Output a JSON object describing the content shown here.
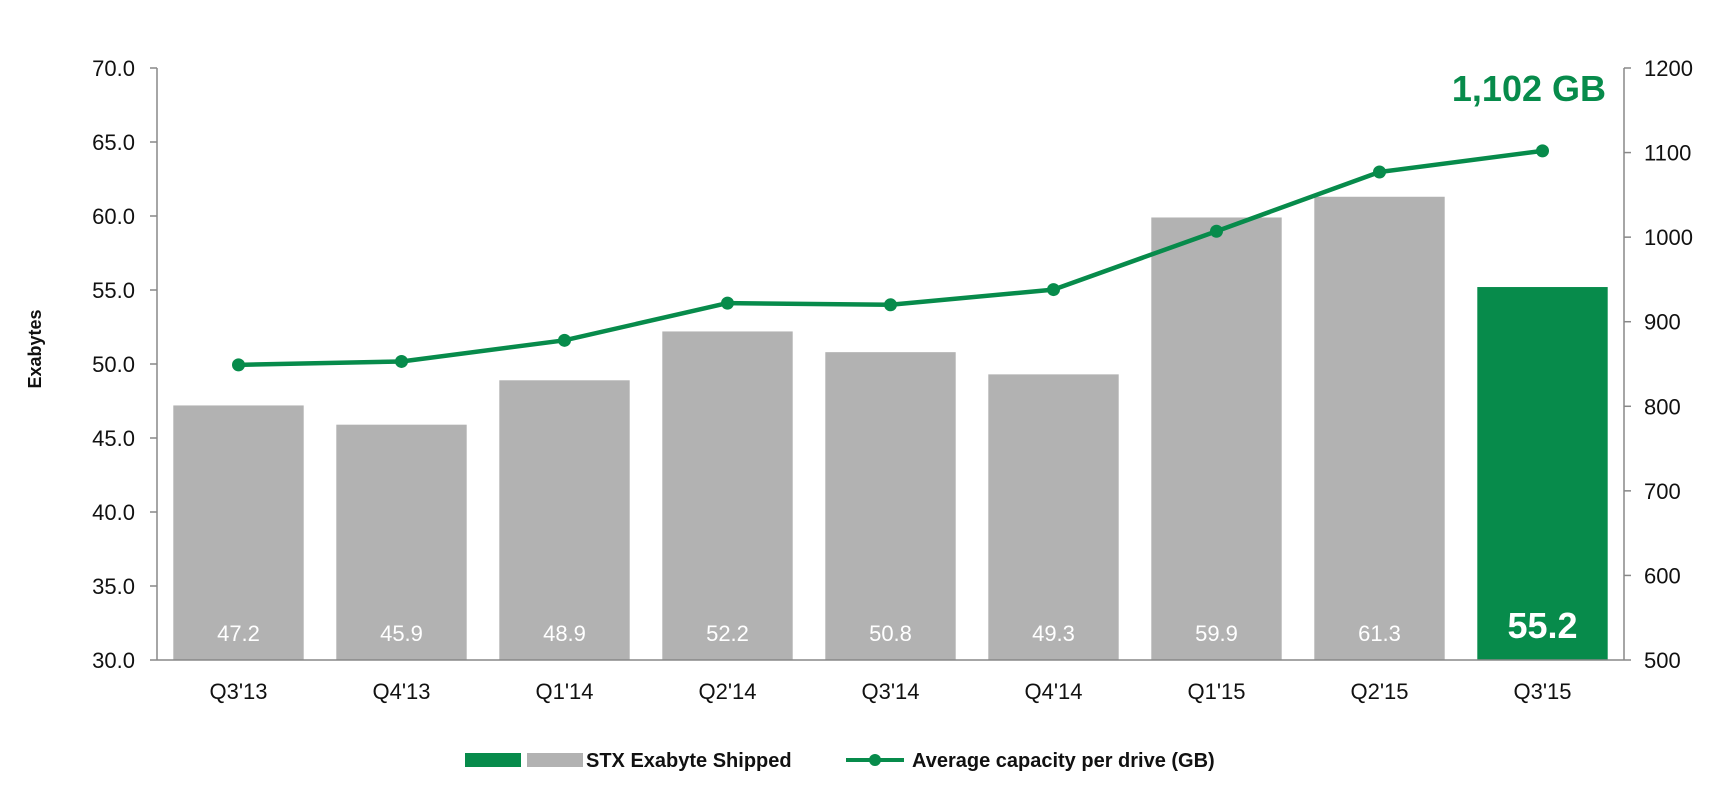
{
  "chart_data": {
    "type": "bar",
    "categories": [
      "Q3'13",
      "Q4'13",
      "Q1'14",
      "Q2'14",
      "Q3'14",
      "Q4'14",
      "Q1'15",
      "Q2'15",
      "Q3'15"
    ],
    "series": [
      {
        "name": "STX Exabyte Shipped",
        "type": "bar",
        "axis": "left",
        "values": [
          47.2,
          45.9,
          48.9,
          52.2,
          50.8,
          49.3,
          59.9,
          61.3,
          55.2
        ],
        "labels": [
          "47.2",
          "45.9",
          "48.9",
          "52.2",
          "50.8",
          "49.3",
          "59.9",
          "61.3",
          "55.2"
        ],
        "color": "#b2b2b2",
        "highlight_color": "#078b4b",
        "highlight_index": 8
      },
      {
        "name": "Average capacity per drive (GB)",
        "type": "line",
        "axis": "right",
        "values": [
          849,
          853,
          878,
          922,
          920,
          938,
          1007,
          1077,
          1102
        ],
        "color": "#078b4b"
      }
    ],
    "ylabel": "Exabytes",
    "ylim": [
      30,
      70
    ],
    "yticks": [
      "30.0",
      "35.0",
      "40.0",
      "45.0",
      "50.0",
      "55.0",
      "60.0",
      "65.0",
      "70.0"
    ],
    "y2lim": [
      500,
      1200
    ],
    "y2ticks": [
      "500",
      "600",
      "700",
      "800",
      "900",
      "1000",
      "1100",
      "1200"
    ],
    "annotation": "1,102 GB",
    "legend_position": "bottom-center",
    "grid": false
  }
}
